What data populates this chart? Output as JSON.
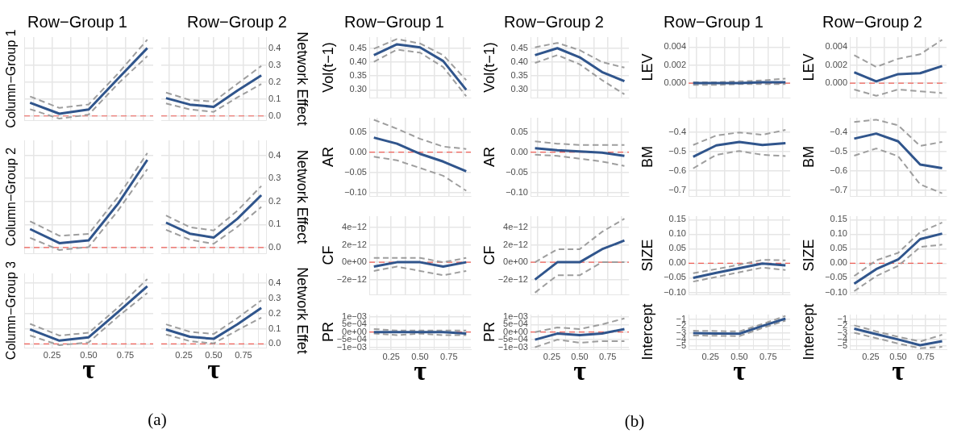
{
  "chart_data": [
    {
      "type": "line",
      "title": "Row−Group 1",
      "ylabel": "Column−Group 1",
      "x": [
        0.1,
        0.3,
        0.5,
        0.7,
        0.9
      ],
      "xlim": [
        0.06,
        0.94
      ],
      "xticks": [
        0.125,
        0.25,
        0.375,
        0.5,
        0.625,
        0.75,
        0.875
      ],
      "ylim": [
        -0.025,
        0.465
      ],
      "yticks": [
        0,
        0.1,
        0.2,
        0.3,
        0.4
      ],
      "grid": true,
      "marker": "none",
      "tick_labels": false,
      "ref_lines": [
        {
          "axis": "y",
          "value": 0,
          "color": "#f0625a",
          "line_style": "dashed"
        }
      ],
      "series": [
        {
          "color": "#30558c",
          "line_style": "solid",
          "values": [
            0.078,
            0.013,
            0.038,
            0.22,
            0.4
          ]
        },
        {
          "color": "#9e9e9e",
          "line_style": "dashed",
          "values": [
            0.115,
            0.047,
            0.068,
            0.25,
            0.45
          ]
        },
        {
          "color": "#9e9e9e",
          "line_style": "dashed",
          "values": [
            0.04,
            -0.016,
            0.008,
            0.19,
            0.353
          ]
        }
      ]
    },
    {
      "type": "line",
      "title": "Row−Group 2",
      "y2label": "Network Effect",
      "x": [
        0.1,
        0.3,
        0.5,
        0.7,
        0.9
      ],
      "xlim": [
        0.06,
        0.94
      ],
      "xticks": [
        0.125,
        0.25,
        0.375,
        0.5,
        0.625,
        0.75,
        0.875
      ],
      "y2lim": [
        -0.025,
        0.465
      ],
      "y2ticks": [
        {
          "value": 0,
          "label": "0.0"
        },
        {
          "value": 0.1,
          "label": "0.1"
        },
        {
          "value": 0.2,
          "label": "0.2"
        },
        {
          "value": 0.3,
          "label": "0.3"
        },
        {
          "value": 0.4,
          "label": "0.4"
        }
      ],
      "grid": true,
      "marker": "none",
      "tick_labels": "y",
      "ref_lines": [
        {
          "axis": "y2",
          "value": 0,
          "color": "#f0625a",
          "line_style": "dashed"
        }
      ],
      "series": [
        {
          "color": "#30558c",
          "line_style": "solid",
          "axis": "y2",
          "values": [
            0.105,
            0.067,
            0.054,
            0.15,
            0.239
          ]
        },
        {
          "color": "#9e9e9e",
          "line_style": "dashed",
          "axis": "y2",
          "values": [
            0.138,
            0.094,
            0.085,
            0.19,
            0.295
          ]
        },
        {
          "color": "#9e9e9e",
          "line_style": "dashed",
          "axis": "y2",
          "values": [
            0.074,
            0.038,
            0.024,
            0.11,
            0.188
          ]
        }
      ]
    },
    {
      "type": "line",
      "ylabel": "Column−Group 2",
      "x": [
        0.1,
        0.3,
        0.5,
        0.7,
        0.9
      ],
      "xlim": [
        0.06,
        0.94
      ],
      "xticks": [
        0.125,
        0.25,
        0.375,
        0.5,
        0.625,
        0.75,
        0.875
      ],
      "ylim": [
        -0.025,
        0.465
      ],
      "yticks": [
        0,
        0.1,
        0.2,
        0.3,
        0.4
      ],
      "grid": true,
      "marker": "none",
      "tick_labels": false,
      "ref_lines": [
        {
          "axis": "y",
          "value": 0,
          "color": "#f0625a",
          "line_style": "dashed"
        }
      ],
      "series": [
        {
          "color": "#30558c",
          "line_style": "solid",
          "values": [
            0.08,
            0.019,
            0.031,
            0.19,
            0.38
          ]
        },
        {
          "color": "#9e9e9e",
          "line_style": "dashed",
          "values": [
            0.114,
            0.051,
            0.059,
            0.22,
            0.41
          ]
        },
        {
          "color": "#9e9e9e",
          "line_style": "dashed",
          "values": [
            0.042,
            -0.011,
            0.002,
            0.16,
            0.34
          ]
        }
      ]
    },
    {
      "type": "line",
      "y2label": "Network Effect",
      "x": [
        0.1,
        0.3,
        0.5,
        0.7,
        0.9
      ],
      "xlim": [
        0.06,
        0.94
      ],
      "xticks": [
        0.125,
        0.25,
        0.375,
        0.5,
        0.625,
        0.75,
        0.875
      ],
      "y2lim": [
        -0.025,
        0.465
      ],
      "y2ticks": [
        {
          "value": 0,
          "label": "0.0"
        },
        {
          "value": 0.1,
          "label": "0.1"
        },
        {
          "value": 0.2,
          "label": "0.2"
        },
        {
          "value": 0.3,
          "label": "0.3"
        },
        {
          "value": 0.4,
          "label": "0.4"
        }
      ],
      "grid": true,
      "marker": "none",
      "tick_labels": "y",
      "ref_lines": [
        {
          "axis": "y2",
          "value": 0,
          "color": "#f0625a",
          "line_style": "dashed"
        }
      ],
      "series": [
        {
          "color": "#30558c",
          "line_style": "solid",
          "axis": "y2",
          "values": [
            0.108,
            0.06,
            0.043,
            0.125,
            0.227
          ]
        },
        {
          "color": "#9e9e9e",
          "line_style": "dashed",
          "axis": "y2",
          "values": [
            0.139,
            0.088,
            0.074,
            0.16,
            0.267
          ]
        },
        {
          "color": "#9e9e9e",
          "line_style": "dashed",
          "axis": "y2",
          "values": [
            0.077,
            0.034,
            0.016,
            0.09,
            0.176
          ]
        }
      ]
    },
    {
      "type": "line",
      "ylabel": "Column−Group 3",
      "xlabel": "τ",
      "annotations": [
        "(a)"
      ],
      "x": [
        0.1,
        0.3,
        0.5,
        0.7,
        0.9
      ],
      "xlim": [
        0.06,
        0.94
      ],
      "xticks": [
        {
          "value": 0.125,
          "label": null
        },
        {
          "value": 0.25,
          "label": "0.25"
        },
        {
          "value": 0.375,
          "label": null
        },
        {
          "value": 0.5,
          "label": "0.50"
        },
        {
          "value": 0.625,
          "label": null
        },
        {
          "value": 0.75,
          "label": "0.75"
        },
        {
          "value": 0.875,
          "label": null
        }
      ],
      "ylim": [
        -0.025,
        0.465
      ],
      "yticks": [
        0,
        0.1,
        0.2,
        0.3,
        0.4
      ],
      "grid": true,
      "marker": "none",
      "tick_labels": "x",
      "ref_lines": [
        {
          "axis": "y",
          "value": 0,
          "color": "#f0625a",
          "line_style": "dashed"
        }
      ],
      "series": [
        {
          "color": "#30558c",
          "line_style": "solid",
          "values": [
            0.095,
            0.021,
            0.043,
            0.21,
            0.38
          ]
        },
        {
          "color": "#9e9e9e",
          "line_style": "dashed",
          "values": [
            0.132,
            0.055,
            0.073,
            0.24,
            0.428
          ]
        },
        {
          "color": "#9e9e9e",
          "line_style": "dashed",
          "values": [
            0.055,
            -0.009,
            0.01,
            0.18,
            0.336
          ]
        }
      ]
    },
    {
      "type": "line",
      "y2label": "Network Effet",
      "xlabel": "τ",
      "x": [
        0.1,
        0.3,
        0.5,
        0.7,
        0.9
      ],
      "xlim": [
        0.06,
        0.94
      ],
      "xticks": [
        {
          "value": 0.125,
          "label": null
        },
        {
          "value": 0.25,
          "label": "0.25"
        },
        {
          "value": 0.375,
          "label": null
        },
        {
          "value": 0.5,
          "label": "0.50"
        },
        {
          "value": 0.625,
          "label": null
        },
        {
          "value": 0.75,
          "label": "0.75"
        },
        {
          "value": 0.875,
          "label": null
        }
      ],
      "y2lim": [
        -0.025,
        0.465
      ],
      "y2ticks": [
        {
          "value": 0,
          "label": "0.0"
        },
        {
          "value": 0.1,
          "label": "0.1"
        },
        {
          "value": 0.2,
          "label": "0.2"
        },
        {
          "value": 0.3,
          "label": "0.3"
        },
        {
          "value": 0.4,
          "label": "0.4"
        }
      ],
      "grid": true,
      "marker": "none",
      "ref_lines": [
        {
          "axis": "y2",
          "value": 0,
          "color": "#f0625a",
          "line_style": "dashed"
        }
      ],
      "series": [
        {
          "color": "#30558c",
          "line_style": "solid",
          "axis": "y2",
          "values": [
            0.095,
            0.047,
            0.033,
            0.129,
            0.237
          ]
        },
        {
          "color": "#9e9e9e",
          "line_style": "dashed",
          "axis": "y2",
          "values": [
            0.129,
            0.08,
            0.065,
            0.17,
            0.287
          ]
        },
        {
          "color": "#9e9e9e",
          "line_style": "dashed",
          "axis": "y2",
          "values": [
            0.062,
            0.018,
            0.003,
            0.09,
            0.173
          ]
        }
      ]
    },
    {
      "type": "line",
      "title": "Row−Group 1",
      "ylabel": "Vol(t−1)",
      "x": [
        0.1,
        0.3,
        0.5,
        0.7,
        0.9
      ],
      "xlim": [
        0.06,
        0.94
      ],
      "xticks": [
        0.125,
        0.25,
        0.375,
        0.5,
        0.625,
        0.75,
        0.875
      ],
      "ylim": [
        0.272,
        0.49
      ],
      "yticks": [
        {
          "value": 0.3,
          "label": "0.30"
        },
        {
          "value": 0.35,
          "label": "0.35"
        },
        {
          "value": 0.4,
          "label": "0.40"
        },
        {
          "value": 0.45,
          "label": "0.45"
        }
      ],
      "grid": true,
      "marker": "none",
      "tick_labels": "y",
      "series": [
        {
          "color": "#30558c",
          "line_style": "solid",
          "values": [
            0.425,
            0.464,
            0.453,
            0.404,
            0.3
          ]
        },
        {
          "color": "#9e9e9e",
          "line_style": "dashed",
          "values": [
            0.448,
            0.483,
            0.467,
            0.425,
            0.335
          ]
        },
        {
          "color": "#9e9e9e",
          "line_style": "dashed",
          "values": [
            0.401,
            0.445,
            0.434,
            0.382,
            0.277
          ]
        }
      ]
    },
    {
      "type": "line",
      "title": "Row−Group 2",
      "ylabel": "Vol(t−1)",
      "x": [
        0.1,
        0.3,
        0.5,
        0.7,
        0.9
      ],
      "xlim": [
        0.06,
        0.94
      ],
      "xticks": [
        0.125,
        0.25,
        0.375,
        0.5,
        0.625,
        0.75,
        0.875
      ],
      "ylim": [
        0.272,
        0.49
      ],
      "yticks": [
        {
          "value": 0.3,
          "label": "0.30"
        },
        {
          "value": 0.35,
          "label": "0.35"
        },
        {
          "value": 0.4,
          "label": "0.40"
        },
        {
          "value": 0.45,
          "label": "0.45"
        }
      ],
      "grid": true,
      "marker": "none",
      "tick_labels": "y",
      "series": [
        {
          "color": "#30558c",
          "line_style": "solid",
          "values": [
            0.425,
            0.45,
            0.417,
            0.364,
            0.331
          ]
        },
        {
          "color": "#9e9e9e",
          "line_style": "dashed",
          "values": [
            0.453,
            0.469,
            0.443,
            0.4,
            0.38
          ]
        },
        {
          "color": "#9e9e9e",
          "line_style": "dashed",
          "values": [
            0.397,
            0.425,
            0.392,
            0.335,
            0.284
          ]
        }
      ]
    },
    {
      "type": "line",
      "title": "Row−Group 1",
      "ylabel": "LEV",
      "x": [
        0.1,
        0.3,
        0.5,
        0.7,
        0.9
      ],
      "xlim": [
        0.06,
        0.94
      ],
      "xticks": [
        0.125,
        0.25,
        0.375,
        0.5,
        0.625,
        0.75,
        0.875
      ],
      "ylim": [
        -0.0016,
        0.0051
      ],
      "yticks": [
        {
          "value": 0,
          "label": "0.000"
        },
        {
          "value": 0.002,
          "label": "0.002"
        },
        {
          "value": 0.004,
          "label": "0.004"
        }
      ],
      "grid": true,
      "marker": "none",
      "tick_labels": "y",
      "ref_lines": [
        {
          "axis": "y",
          "value": 0,
          "color": "#f0625a",
          "line_style": "dashed"
        }
      ],
      "series": [
        {
          "color": "#30558c",
          "line_style": "solid",
          "values": [
            0,
            0,
            0,
            0.0001,
            0.0001
          ]
        },
        {
          "color": "#9e9e9e",
          "line_style": "dashed",
          "values": [
            0.0001,
            0.0001,
            0.0002,
            0.0003,
            0.0005
          ]
        },
        {
          "color": "#9e9e9e",
          "line_style": "dashed",
          "values": [
            -0.0002,
            -0.0002,
            -0.0001,
            -0.0001,
            -0.0001
          ]
        }
      ]
    },
    {
      "type": "line",
      "title": "Row−Group 2",
      "ylabel": "LEV",
      "x": [
        0.1,
        0.3,
        0.5,
        0.7,
        0.9
      ],
      "xlim": [
        0.06,
        0.94
      ],
      "xticks": [
        0.125,
        0.25,
        0.375,
        0.5,
        0.625,
        0.75,
        0.875
      ],
      "ylim": [
        -0.0016,
        0.0051
      ],
      "yticks": [
        {
          "value": 0,
          "label": "0.000"
        },
        {
          "value": 0.002,
          "label": "0.002"
        },
        {
          "value": 0.004,
          "label": "0.004"
        }
      ],
      "grid": true,
      "marker": "none",
      "tick_labels": "y",
      "ref_lines": [
        {
          "axis": "y",
          "value": 0,
          "color": "#f0625a",
          "line_style": "dashed"
        }
      ],
      "series": [
        {
          "color": "#30558c",
          "line_style": "solid",
          "values": [
            0.0012,
            0.0002,
            0.001,
            0.0011,
            0.0019
          ]
        },
        {
          "color": "#9e9e9e",
          "line_style": "dashed",
          "values": [
            0.0031,
            0.0018,
            0.0027,
            0.0032,
            0.0048
          ]
        },
        {
          "color": "#9e9e9e",
          "line_style": "dashed",
          "values": [
            -0.0007,
            -0.0014,
            -0.0007,
            -0.0009,
            -0.0011
          ]
        }
      ]
    },
    {
      "type": "line",
      "ylabel": "AR",
      "x": [
        0.1,
        0.3,
        0.5,
        0.7,
        0.9
      ],
      "xlim": [
        0.06,
        0.94
      ],
      "xticks": [
        0.125,
        0.25,
        0.375,
        0.5,
        0.625,
        0.75,
        0.875
      ],
      "ylim": [
        -0.108,
        0.085
      ],
      "yticks": [
        {
          "value": -0.1,
          "label": "−0.10"
        },
        {
          "value": -0.05,
          "label": "−0.05"
        },
        {
          "value": 0,
          "label": "0.00"
        },
        {
          "value": 0.05,
          "label": "0.05"
        }
      ],
      "grid": true,
      "marker": "none",
      "tick_labels": "y",
      "ref_lines": [
        {
          "axis": "y",
          "value": 0,
          "color": "#f0625a",
          "line_style": "dashed"
        }
      ],
      "series": [
        {
          "color": "#30558c",
          "line_style": "solid",
          "values": [
            0.036,
            0.021,
            -0.004,
            -0.023,
            -0.047
          ]
        },
        {
          "color": "#9e9e9e",
          "line_style": "dashed",
          "values": [
            0.08,
            0.058,
            0.033,
            0.014,
            0.008
          ]
        },
        {
          "color": "#9e9e9e",
          "line_style": "dashed",
          "values": [
            -0.011,
            -0.02,
            -0.039,
            -0.058,
            -0.095
          ]
        }
      ]
    },
    {
      "type": "line",
      "ylabel": "AR",
      "x": [
        0.1,
        0.3,
        0.5,
        0.7,
        0.9
      ],
      "xlim": [
        0.06,
        0.94
      ],
      "xticks": [
        0.125,
        0.25,
        0.375,
        0.5,
        0.625,
        0.75,
        0.875
      ],
      "ylim": [
        -0.108,
        0.085
      ],
      "yticks": [
        {
          "value": -0.1,
          "label": "−0.10"
        },
        {
          "value": -0.05,
          "label": "−0.05"
        },
        {
          "value": 0,
          "label": "0.00"
        },
        {
          "value": 0.05,
          "label": "0.05"
        }
      ],
      "grid": true,
      "marker": "none",
      "tick_labels": "y",
      "ref_lines": [
        {
          "axis": "y",
          "value": 0,
          "color": "#f0625a",
          "line_style": "dashed"
        }
      ],
      "series": [
        {
          "color": "#30558c",
          "line_style": "solid",
          "values": [
            0.01,
            0.005,
            0.002,
            -0.001,
            -0.009
          ]
        },
        {
          "color": "#9e9e9e",
          "line_style": "dashed",
          "values": [
            0.027,
            0.021,
            0.018,
            0.018,
            0.018
          ]
        },
        {
          "color": "#9e9e9e",
          "line_style": "dashed",
          "values": [
            -0.006,
            -0.009,
            -0.016,
            -0.023,
            -0.034
          ]
        }
      ]
    },
    {
      "type": "line",
      "ylabel": "BM",
      "x": [
        0.1,
        0.3,
        0.5,
        0.7,
        0.9
      ],
      "xlim": [
        0.06,
        0.94
      ],
      "xticks": [
        0.125,
        0.25,
        0.375,
        0.5,
        0.625,
        0.75,
        0.875
      ],
      "ylim": [
        -0.73,
        -0.325
      ],
      "yticks": [
        {
          "value": -0.7,
          "label": "−0.7"
        },
        {
          "value": -0.6,
          "label": "−0.6"
        },
        {
          "value": -0.5,
          "label": "−0.5"
        },
        {
          "value": -0.4,
          "label": "−0.4"
        }
      ],
      "grid": true,
      "marker": "none",
      "tick_labels": "y",
      "series": [
        {
          "color": "#30558c",
          "line_style": "solid",
          "values": [
            -0.527,
            -0.468,
            -0.45,
            -0.466,
            -0.457
          ]
        },
        {
          "color": "#9e9e9e",
          "line_style": "dashed",
          "values": [
            -0.466,
            -0.417,
            -0.401,
            -0.413,
            -0.388
          ]
        },
        {
          "color": "#9e9e9e",
          "line_style": "dashed",
          "values": [
            -0.587,
            -0.517,
            -0.497,
            -0.517,
            -0.523
          ]
        }
      ]
    },
    {
      "type": "line",
      "ylabel": "BM",
      "x": [
        0.1,
        0.3,
        0.5,
        0.7,
        0.9
      ],
      "xlim": [
        0.06,
        0.94
      ],
      "xticks": [
        0.125,
        0.25,
        0.375,
        0.5,
        0.625,
        0.75,
        0.875
      ],
      "ylim": [
        -0.73,
        -0.325
      ],
      "yticks": [
        {
          "value": -0.7,
          "label": "−0.7"
        },
        {
          "value": -0.6,
          "label": "−0.6"
        },
        {
          "value": -0.5,
          "label": "−0.5"
        },
        {
          "value": -0.4,
          "label": "−0.4"
        }
      ],
      "grid": true,
      "marker": "none",
      "tick_labels": "y",
      "series": [
        {
          "color": "#30558c",
          "line_style": "solid",
          "values": [
            -0.433,
            -0.407,
            -0.447,
            -0.567,
            -0.586
          ]
        },
        {
          "color": "#9e9e9e",
          "line_style": "dashed",
          "values": [
            -0.347,
            -0.335,
            -0.364,
            -0.471,
            -0.45
          ]
        },
        {
          "color": "#9e9e9e",
          "line_style": "dashed",
          "values": [
            -0.521,
            -0.484,
            -0.524,
            -0.67,
            -0.716
          ]
        }
      ]
    },
    {
      "type": "line",
      "ylabel": "CF",
      "x": [
        0.1,
        0.3,
        0.5,
        0.7,
        0.9
      ],
      "xlim": [
        0.06,
        0.94
      ],
      "xticks": [
        0.125,
        0.25,
        0.375,
        0.5,
        0.625,
        0.75,
        0.875
      ],
      "ylim": [
        -3.7e-12,
        5.3e-12
      ],
      "yticks": [
        {
          "value": -2e-12,
          "label": "−2e−12"
        },
        {
          "value": 0,
          "label": "0e+00"
        },
        {
          "value": 2e-12,
          "label": "2e−12"
        },
        {
          "value": 4e-12,
          "label": "4e−12"
        }
      ],
      "grid": true,
      "marker": "none",
      "tick_labels": "y",
      "ref_lines": [
        {
          "axis": "y",
          "value": 0,
          "color": "#f0625a",
          "line_style": "dashed"
        }
      ],
      "series": [
        {
          "color": "#30558c",
          "line_style": "solid",
          "values": [
            -5e-13,
            0,
            0,
            -5e-13,
            0
          ]
        },
        {
          "color": "#9e9e9e",
          "line_style": "dashed",
          "values": [
            5e-13,
            5e-13,
            5e-13,
            0,
            5e-13
          ]
        },
        {
          "color": "#9e9e9e",
          "line_style": "dashed",
          "values": [
            -1e-12,
            -5e-13,
            -1e-12,
            -1.5e-12,
            -1e-12
          ]
        }
      ]
    },
    {
      "type": "line",
      "ylabel": "CF",
      "x": [
        0.1,
        0.3,
        0.5,
        0.7,
        0.9
      ],
      "xlim": [
        0.06,
        0.94
      ],
      "xticks": [
        0.125,
        0.25,
        0.375,
        0.5,
        0.625,
        0.75,
        0.875
      ],
      "ylim": [
        -3.7e-12,
        5.3e-12
      ],
      "yticks": [
        {
          "value": -2e-12,
          "label": "−2e−12"
        },
        {
          "value": 0,
          "label": "0e+00"
        },
        {
          "value": 2e-12,
          "label": "2e−12"
        },
        {
          "value": 4e-12,
          "label": "4e−12"
        }
      ],
      "grid": true,
      "marker": "none",
      "tick_labels": "y",
      "ref_lines": [
        {
          "axis": "y",
          "value": 0,
          "color": "#f0625a",
          "line_style": "dashed"
        }
      ],
      "series": [
        {
          "color": "#30558c",
          "line_style": "solid",
          "values": [
            -2e-12,
            0,
            0,
            1.5e-12,
            2.5e-12
          ]
        },
        {
          "color": "#9e9e9e",
          "line_style": "dashed",
          "values": [
            0,
            1.5e-12,
            1.5e-12,
            3.5e-12,
            5e-12
          ]
        },
        {
          "color": "#9e9e9e",
          "line_style": "dashed",
          "values": [
            -3.5e-12,
            -1.5e-12,
            -1.5e-12,
            0,
            0
          ]
        }
      ]
    },
    {
      "type": "line",
      "ylabel": "SIZE",
      "x": [
        0.1,
        0.3,
        0.5,
        0.7,
        0.9
      ],
      "xlim": [
        0.06,
        0.94
      ],
      "xticks": [
        0.125,
        0.25,
        0.375,
        0.5,
        0.625,
        0.75,
        0.875
      ],
      "ylim": [
        -0.107,
        0.162
      ],
      "yticks": [
        {
          "value": -0.1,
          "label": "−0.10"
        },
        {
          "value": -0.05,
          "label": "−0.05"
        },
        {
          "value": 0,
          "label": "0.00"
        },
        {
          "value": 0.05,
          "label": "0.05"
        },
        {
          "value": 0.1,
          "label": "0.10"
        },
        {
          "value": 0.15,
          "label": "0.15"
        }
      ],
      "grid": true,
      "marker": "none",
      "tick_labels": "y",
      "ref_lines": [
        {
          "axis": "y",
          "value": 0,
          "color": "#f0625a",
          "line_style": "dashed"
        }
      ],
      "series": [
        {
          "color": "#30558c",
          "line_style": "solid",
          "values": [
            -0.05,
            -0.033,
            -0.017,
            -0.001,
            -0.007
          ]
        },
        {
          "color": "#9e9e9e",
          "line_style": "dashed",
          "values": [
            -0.034,
            -0.02,
            -0.005,
            0.012,
            0.01
          ]
        },
        {
          "color": "#9e9e9e",
          "line_style": "dashed",
          "values": [
            -0.063,
            -0.047,
            -0.031,
            -0.015,
            -0.023
          ]
        }
      ]
    },
    {
      "type": "line",
      "ylabel": "SIZE",
      "x": [
        0.1,
        0.3,
        0.5,
        0.7,
        0.9
      ],
      "xlim": [
        0.06,
        0.94
      ],
      "xticks": [
        0.125,
        0.25,
        0.375,
        0.5,
        0.625,
        0.75,
        0.875
      ],
      "ylim": [
        -0.107,
        0.162
      ],
      "yticks": [
        {
          "value": -0.1,
          "label": "−0.10"
        },
        {
          "value": -0.05,
          "label": "−0.05"
        },
        {
          "value": 0,
          "label": "0.00"
        },
        {
          "value": 0.05,
          "label": "0.05"
        },
        {
          "value": 0.1,
          "label": "0.10"
        },
        {
          "value": 0.15,
          "label": "0.15"
        }
      ],
      "grid": true,
      "marker": "none",
      "tick_labels": "y",
      "ref_lines": [
        {
          "axis": "y",
          "value": 0,
          "color": "#f0625a",
          "line_style": "dashed"
        }
      ],
      "series": [
        {
          "color": "#30558c",
          "line_style": "solid",
          "values": [
            -0.07,
            -0.02,
            0.013,
            0.083,
            0.102
          ]
        },
        {
          "color": "#9e9e9e",
          "line_style": "dashed",
          "values": [
            -0.044,
            0.01,
            0.036,
            0.107,
            0.14
          ]
        },
        {
          "color": "#9e9e9e",
          "line_style": "dashed",
          "values": [
            -0.096,
            -0.044,
            -0.009,
            0.056,
            0.064
          ]
        }
      ]
    },
    {
      "type": "line",
      "ylabel": "PR",
      "xlabel": "τ",
      "annotations": [
        "(b)"
      ],
      "x": [
        0.1,
        0.3,
        0.5,
        0.7,
        0.9
      ],
      "xlim": [
        0.06,
        0.94
      ],
      "xticks": [
        {
          "value": 0.125,
          "label": null
        },
        {
          "value": 0.25,
          "label": "0.25"
        },
        {
          "value": 0.375,
          "label": null
        },
        {
          "value": 0.5,
          "label": "0.50"
        },
        {
          "value": 0.625,
          "label": null
        },
        {
          "value": 0.75,
          "label": "0.75"
        },
        {
          "value": 0.875,
          "label": null
        }
      ],
      "ylim": [
        -0.00113,
        0.00115
      ],
      "yticks": [
        {
          "value": -0.001,
          "label": "−1e−03"
        },
        {
          "value": -0.0005,
          "label": "−5e−04"
        },
        {
          "value": 0,
          "label": "0e+00"
        },
        {
          "value": 0.0005,
          "label": "5e−04"
        },
        {
          "value": 0.001,
          "label": "1e−03"
        }
      ],
      "grid": true,
      "marker": "none",
      "ref_lines": [
        {
          "axis": "y",
          "value": 0,
          "color": "#f0625a",
          "line_style": "dashed"
        }
      ],
      "series": [
        {
          "color": "#30558c",
          "line_style": "solid",
          "values": [
            0,
            0,
            0,
            0,
            -0.0001
          ]
        },
        {
          "color": "#9e9e9e",
          "line_style": "dashed",
          "values": [
            0.0002,
            0.0001,
            0.0001,
            0.0001,
            0.0001
          ]
        },
        {
          "color": "#9e9e9e",
          "line_style": "dashed",
          "values": [
            -0.0001,
            -0.0002,
            -0.0001,
            -0.0002,
            -0.0002
          ]
        }
      ]
    },
    {
      "type": "line",
      "ylabel": "PR",
      "xlabel": "τ",
      "x": [
        0.1,
        0.3,
        0.5,
        0.7,
        0.9
      ],
      "xlim": [
        0.06,
        0.94
      ],
      "xticks": [
        {
          "value": 0.125,
          "label": null
        },
        {
          "value": 0.25,
          "label": "0.25"
        },
        {
          "value": 0.375,
          "label": null
        },
        {
          "value": 0.5,
          "label": "0.50"
        },
        {
          "value": 0.625,
          "label": null
        },
        {
          "value": 0.75,
          "label": "0.75"
        },
        {
          "value": 0.875,
          "label": null
        }
      ],
      "ylim": [
        -0.00113,
        0.00115
      ],
      "yticks": [
        {
          "value": -0.001,
          "label": "−1e−03"
        },
        {
          "value": -0.0005,
          "label": "−5e−04"
        },
        {
          "value": 0,
          "label": "0e+00"
        },
        {
          "value": 0.0005,
          "label": "5e−04"
        },
        {
          "value": 0.001,
          "label": "1e−03"
        }
      ],
      "grid": true,
      "marker": "none",
      "ref_lines": [
        {
          "axis": "y",
          "value": 0,
          "color": "#f0625a",
          "line_style": "dashed"
        }
      ],
      "series": [
        {
          "color": "#30558c",
          "line_style": "solid",
          "values": [
            -0.0005,
            -0.0001,
            -0.0002,
            -0.0001,
            0.0002
          ]
        },
        {
          "color": "#9e9e9e",
          "line_style": "dashed",
          "values": [
            0,
            0.0003,
            0.0002,
            0.0005,
            0.0009
          ]
        },
        {
          "color": "#9e9e9e",
          "line_style": "dashed",
          "values": [
            -0.001,
            -0.0005,
            -0.0007,
            -0.0006,
            -0.0006
          ]
        }
      ]
    },
    {
      "type": "line",
      "ylabel": "Intercept",
      "xlabel": "τ",
      "x": [
        0.1,
        0.3,
        0.5,
        0.7,
        0.9
      ],
      "xlim": [
        0.06,
        0.94
      ],
      "xticks": [
        {
          "value": 0.125,
          "label": null
        },
        {
          "value": 0.25,
          "label": "0.25"
        },
        {
          "value": 0.375,
          "label": null
        },
        {
          "value": 0.5,
          "label": "0.50"
        },
        {
          "value": 0.625,
          "label": null
        },
        {
          "value": 0.75,
          "label": "0.75"
        },
        {
          "value": 0.875,
          "label": null
        }
      ],
      "ylim": [
        -5.45,
        -0.3
      ],
      "yticks": [
        {
          "value": -5,
          "label": "−5"
        },
        {
          "value": -4,
          "label": "−4"
        },
        {
          "value": -3,
          "label": "−3"
        },
        {
          "value": -2,
          "label": "−2"
        },
        {
          "value": -1,
          "label": "−1"
        }
      ],
      "grid": true,
      "marker": "none",
      "series": [
        {
          "color": "#30558c",
          "line_style": "solid",
          "values": [
            -3.05,
            -3.1,
            -3.15,
            -2.0,
            -0.9
          ]
        },
        {
          "color": "#9e9e9e",
          "line_style": "dashed",
          "values": [
            -2.7,
            -2.75,
            -2.8,
            -1.7,
            -0.5
          ]
        },
        {
          "color": "#9e9e9e",
          "line_style": "dashed",
          "values": [
            -3.4,
            -3.45,
            -3.5,
            -2.3,
            -1.2
          ]
        }
      ]
    },
    {
      "type": "line",
      "ylabel": "Intercept",
      "xlabel": "τ",
      "x": [
        0.1,
        0.3,
        0.5,
        0.7,
        0.9
      ],
      "xlim": [
        0.06,
        0.94
      ],
      "xticks": [
        {
          "value": 0.125,
          "label": null
        },
        {
          "value": 0.25,
          "label": "0.25"
        },
        {
          "value": 0.375,
          "label": null
        },
        {
          "value": 0.5,
          "label": "0.50"
        },
        {
          "value": 0.625,
          "label": null
        },
        {
          "value": 0.75,
          "label": "0.75"
        },
        {
          "value": 0.875,
          "label": null
        }
      ],
      "ylim": [
        -5.45,
        -0.3
      ],
      "yticks": [
        {
          "value": -5,
          "label": "−5"
        },
        {
          "value": -4,
          "label": "−4"
        },
        {
          "value": -3,
          "label": "−3"
        },
        {
          "value": -2,
          "label": "−2"
        },
        {
          "value": -1,
          "label": "−1"
        }
      ],
      "grid": true,
      "marker": "none",
      "series": [
        {
          "color": "#30558c",
          "line_style": "solid",
          "values": [
            -2.4,
            -3.2,
            -4.0,
            -4.85,
            -4.25
          ]
        },
        {
          "color": "#9e9e9e",
          "line_style": "dashed",
          "values": [
            -1.9,
            -2.8,
            -3.6,
            -4.3,
            -3.3
          ]
        },
        {
          "color": "#9e9e9e",
          "line_style": "dashed",
          "values": [
            -3.0,
            -3.8,
            -4.6,
            -5.3,
            -5.1
          ]
        }
      ]
    }
  ]
}
